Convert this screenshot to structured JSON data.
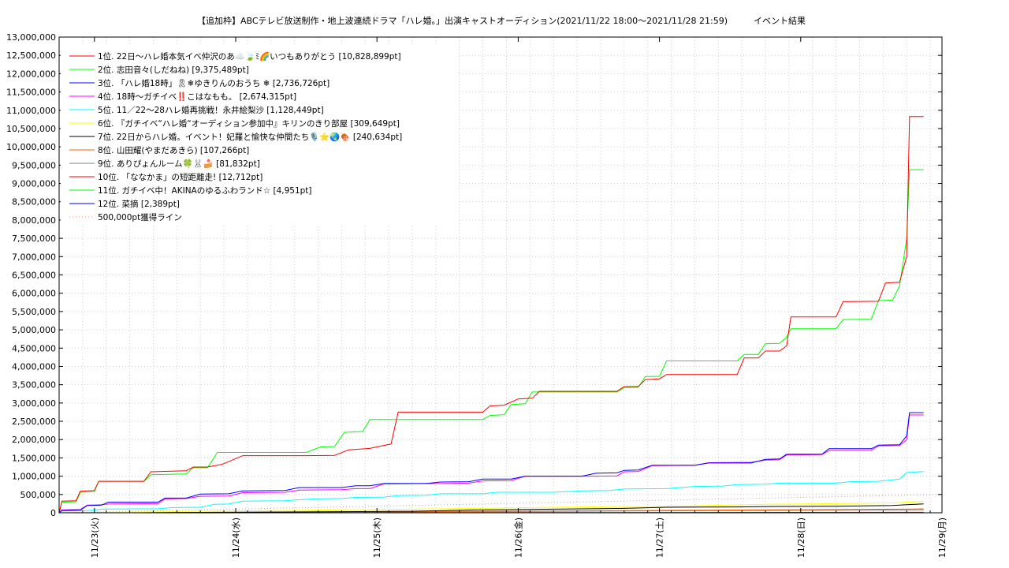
{
  "chart_data": {
    "type": "line",
    "title": "【追加枠】ABCテレビ放送制作・地上波連続ドラマ「ハレ婚。」出演キャストオーディション(2021/11/22 18:00〜2021/11/28 21:59)　　　イベント結果",
    "xlabel": "",
    "ylabel": "",
    "ylim": [
      0,
      13000000
    ],
    "xlim": [
      0,
      6.25
    ],
    "grid": true,
    "legend_position": "top-left",
    "x_tick_labels": [
      "11/23(火)",
      "11/24(水)",
      "11/25(木)",
      "11/26(金)",
      "11/27(土)",
      "11/28(日)",
      "11/29(月)"
    ],
    "x_tick_values": [
      0.25,
      1.25,
      2.25,
      3.25,
      4.25,
      5.25,
      6.25
    ],
    "y_tick_labels": [
      "0",
      "500,000",
      "1,000,000",
      "1,500,000",
      "2,000,000",
      "2,500,000",
      "3,000,000",
      "3,500,000",
      "4,000,000",
      "4,500,000",
      "5,000,000",
      "5,500,000",
      "6,000,000",
      "6,500,000",
      "7,000,000",
      "7,500,000",
      "8,000,000",
      "8,500,000",
      "9,000,000",
      "9,500,000",
      "10,000,000",
      "10,500,000",
      "11,000,000",
      "11,500,000",
      "12,000,000",
      "12,500,000",
      "13,000,000"
    ],
    "y_tick_values": [
      0,
      500000,
      1000000,
      1500000,
      2000000,
      2500000,
      3000000,
      3500000,
      4000000,
      4500000,
      5000000,
      5500000,
      6000000,
      6500000,
      7000000,
      7500000,
      8000000,
      8500000,
      9000000,
      9500000,
      10000000,
      10500000,
      11000000,
      11500000,
      12000000,
      12500000,
      13000000
    ],
    "series": [
      {
        "name": "1位. 22日〜ハレ婚本気イベ仲沢のあ☁️🍃ﾐ🌈いつもありがとう [10,828,899pt]",
        "color": "#ff0000",
        "points": [
          [
            0,
            0
          ],
          [
            0.02,
            320000
          ],
          [
            0.12,
            330000
          ],
          [
            0.15,
            590000
          ],
          [
            0.25,
            610000
          ],
          [
            0.28,
            860000
          ],
          [
            0.6,
            860000
          ],
          [
            0.65,
            1120000
          ],
          [
            0.9,
            1150000
          ],
          [
            0.95,
            1250000
          ],
          [
            1.05,
            1250000
          ],
          [
            1.15,
            1320000
          ],
          [
            1.3,
            1560000
          ],
          [
            1.75,
            1560000
          ],
          [
            1.95,
            1570000
          ],
          [
            2.05,
            1720000
          ],
          [
            2.2,
            1760000
          ],
          [
            2.35,
            1880000
          ],
          [
            2.4,
            2750000
          ],
          [
            3.0,
            2750000
          ],
          [
            3.05,
            2920000
          ],
          [
            3.15,
            2940000
          ],
          [
            3.25,
            3110000
          ],
          [
            3.35,
            3130000
          ],
          [
            3.4,
            3320000
          ],
          [
            3.95,
            3320000
          ],
          [
            4.0,
            3450000
          ],
          [
            4.1,
            3450000
          ],
          [
            4.15,
            3640000
          ],
          [
            4.25,
            3660000
          ],
          [
            4.3,
            3780000
          ],
          [
            4.8,
            3780000
          ],
          [
            4.85,
            4230000
          ],
          [
            4.95,
            4230000
          ],
          [
            5.0,
            4420000
          ],
          [
            5.1,
            4420000
          ],
          [
            5.15,
            4560000
          ],
          [
            5.18,
            5350000
          ],
          [
            5.5,
            5350000
          ],
          [
            5.55,
            5770000
          ],
          [
            5.8,
            5780000
          ],
          [
            5.85,
            6280000
          ],
          [
            5.95,
            6300000
          ],
          [
            6.0,
            7000000
          ],
          [
            6.02,
            10828899
          ],
          [
            6.12,
            10828899
          ]
        ]
      },
      {
        "name": "2位. 志田音々(しだねね) [9,375,489pt]",
        "color": "#00ff00",
        "points": [
          [
            0,
            0
          ],
          [
            0.02,
            290000
          ],
          [
            0.12,
            300000
          ],
          [
            0.15,
            560000
          ],
          [
            0.25,
            580000
          ],
          [
            0.28,
            860000
          ],
          [
            0.6,
            860000
          ],
          [
            0.65,
            1040000
          ],
          [
            0.9,
            1060000
          ],
          [
            0.95,
            1230000
          ],
          [
            1.05,
            1230000
          ],
          [
            1.12,
            1650000
          ],
          [
            1.75,
            1650000
          ],
          [
            1.85,
            1800000
          ],
          [
            1.95,
            1810000
          ],
          [
            2.02,
            2200000
          ],
          [
            2.15,
            2220000
          ],
          [
            2.2,
            2550000
          ],
          [
            3.0,
            2550000
          ],
          [
            3.05,
            2660000
          ],
          [
            3.15,
            2680000
          ],
          [
            3.2,
            2960000
          ],
          [
            3.3,
            2980000
          ],
          [
            3.35,
            3300000
          ],
          [
            3.95,
            3300000
          ],
          [
            4.0,
            3420000
          ],
          [
            4.1,
            3430000
          ],
          [
            4.15,
            3720000
          ],
          [
            4.25,
            3730000
          ],
          [
            4.3,
            4150000
          ],
          [
            4.8,
            4150000
          ],
          [
            4.85,
            4330000
          ],
          [
            4.95,
            4330000
          ],
          [
            5.0,
            4620000
          ],
          [
            5.1,
            4630000
          ],
          [
            5.15,
            4800000
          ],
          [
            5.18,
            5030000
          ],
          [
            5.5,
            5030000
          ],
          [
            5.55,
            5280000
          ],
          [
            5.75,
            5290000
          ],
          [
            5.8,
            5800000
          ],
          [
            5.9,
            5810000
          ],
          [
            5.95,
            6200000
          ],
          [
            6.0,
            7500000
          ],
          [
            6.02,
            9375489
          ],
          [
            6.12,
            9375489
          ]
        ]
      },
      {
        "name": "3位. 「ハレ婚18時」🎗❄ゆきりんのおうち ❄ [2,736,726pt]",
        "color": "#0000ff",
        "points": [
          [
            0,
            0
          ],
          [
            0.02,
            60000
          ],
          [
            0.15,
            70000
          ],
          [
            0.2,
            200000
          ],
          [
            0.3,
            210000
          ],
          [
            0.35,
            290000
          ],
          [
            0.7,
            290000
          ],
          [
            0.75,
            400000
          ],
          [
            0.9,
            400000
          ],
          [
            1.0,
            510000
          ],
          [
            1.2,
            520000
          ],
          [
            1.3,
            600000
          ],
          [
            1.6,
            610000
          ],
          [
            1.7,
            690000
          ],
          [
            2.0,
            690000
          ],
          [
            2.1,
            740000
          ],
          [
            2.2,
            740000
          ],
          [
            2.3,
            800000
          ],
          [
            2.6,
            800000
          ],
          [
            2.7,
            840000
          ],
          [
            2.9,
            850000
          ],
          [
            3.0,
            920000
          ],
          [
            3.2,
            920000
          ],
          [
            3.3,
            1000000
          ],
          [
            3.7,
            1000000
          ],
          [
            3.8,
            1080000
          ],
          [
            3.95,
            1090000
          ],
          [
            4.0,
            1160000
          ],
          [
            4.1,
            1170000
          ],
          [
            4.2,
            1300000
          ],
          [
            4.5,
            1300000
          ],
          [
            4.6,
            1360000
          ],
          [
            4.9,
            1360000
          ],
          [
            5.0,
            1460000
          ],
          [
            5.1,
            1470000
          ],
          [
            5.15,
            1600000
          ],
          [
            5.4,
            1600000
          ],
          [
            5.45,
            1750000
          ],
          [
            5.75,
            1750000
          ],
          [
            5.8,
            1850000
          ],
          [
            5.95,
            1860000
          ],
          [
            6.0,
            2100000
          ],
          [
            6.02,
            2736726
          ],
          [
            6.12,
            2736726
          ]
        ]
      },
      {
        "name": "4位. 18時〜ガチイベ‼️こはなもも。 [2,674,315pt]",
        "color": "#ff00ff",
        "points": [
          [
            0,
            0
          ],
          [
            0.02,
            80000
          ],
          [
            0.15,
            90000
          ],
          [
            0.2,
            210000
          ],
          [
            0.3,
            220000
          ],
          [
            0.35,
            240000
          ],
          [
            0.7,
            250000
          ],
          [
            0.75,
            380000
          ],
          [
            0.9,
            390000
          ],
          [
            1.0,
            450000
          ],
          [
            1.2,
            460000
          ],
          [
            1.3,
            550000
          ],
          [
            1.6,
            560000
          ],
          [
            1.7,
            620000
          ],
          [
            2.0,
            630000
          ],
          [
            2.1,
            660000
          ],
          [
            2.2,
            660000
          ],
          [
            2.3,
            790000
          ],
          [
            2.6,
            800000
          ],
          [
            2.7,
            800000
          ],
          [
            2.9,
            810000
          ],
          [
            3.0,
            870000
          ],
          [
            3.2,
            880000
          ],
          [
            3.3,
            1000000
          ],
          [
            3.7,
            1000000
          ],
          [
            3.8,
            1000000
          ],
          [
            3.95,
            1010000
          ],
          [
            4.0,
            1120000
          ],
          [
            4.1,
            1130000
          ],
          [
            4.2,
            1290000
          ],
          [
            4.5,
            1300000
          ],
          [
            4.6,
            1370000
          ],
          [
            4.9,
            1380000
          ],
          [
            5.0,
            1440000
          ],
          [
            5.1,
            1450000
          ],
          [
            5.15,
            1580000
          ],
          [
            5.4,
            1590000
          ],
          [
            5.45,
            1700000
          ],
          [
            5.75,
            1710000
          ],
          [
            5.8,
            1830000
          ],
          [
            5.95,
            1840000
          ],
          [
            6.0,
            2000000
          ],
          [
            6.02,
            2674315
          ],
          [
            6.12,
            2674315
          ]
        ]
      },
      {
        "name": "5位. 11／22〜28ハレ婚再挑戦！永井絵梨沙 [1,128,449pt]",
        "color": "#00ffff",
        "points": [
          [
            0,
            0
          ],
          [
            0.02,
            50000
          ],
          [
            0.2,
            60000
          ],
          [
            0.3,
            100000
          ],
          [
            0.7,
            110000
          ],
          [
            0.8,
            140000
          ],
          [
            1.0,
            150000
          ],
          [
            1.1,
            230000
          ],
          [
            1.2,
            240000
          ],
          [
            1.3,
            320000
          ],
          [
            1.6,
            330000
          ],
          [
            1.8,
            380000
          ],
          [
            2.0,
            390000
          ],
          [
            2.1,
            420000
          ],
          [
            2.3,
            430000
          ],
          [
            2.4,
            470000
          ],
          [
            2.6,
            480000
          ],
          [
            2.7,
            520000
          ],
          [
            3.0,
            520000
          ],
          [
            3.1,
            560000
          ],
          [
            3.5,
            560000
          ],
          [
            3.7,
            600000
          ],
          [
            3.9,
            610000
          ],
          [
            4.0,
            650000
          ],
          [
            4.3,
            660000
          ],
          [
            4.5,
            720000
          ],
          [
            4.7,
            730000
          ],
          [
            4.8,
            770000
          ],
          [
            5.0,
            780000
          ],
          [
            5.1,
            810000
          ],
          [
            5.5,
            810000
          ],
          [
            5.6,
            850000
          ],
          [
            5.8,
            860000
          ],
          [
            5.9,
            900000
          ],
          [
            5.95,
            920000
          ],
          [
            6.0,
            1100000
          ],
          [
            6.12,
            1128449
          ]
        ]
      },
      {
        "name": "6位. 『ガチイベ“ハレ婚“オーディション参加中』キリンのきり部屋 [309,649pt]",
        "color": "#ffff00",
        "points": [
          [
            0,
            0
          ],
          [
            0.5,
            20000
          ],
          [
            1.0,
            40000
          ],
          [
            1.5,
            60000
          ],
          [
            2.0,
            80000
          ],
          [
            2.5,
            100000
          ],
          [
            3.0,
            120000
          ],
          [
            3.5,
            150000
          ],
          [
            4.0,
            170000
          ],
          [
            4.5,
            190000
          ],
          [
            5.0,
            230000
          ],
          [
            5.5,
            250000
          ],
          [
            5.9,
            270000
          ],
          [
            6.12,
            309649
          ]
        ]
      },
      {
        "name": "7位. 22日からハレ婚。イベント！妃羅と愉快な仲間たち🎙️⭐🌏🍖 [240,634pt]",
        "color": "#000000",
        "points": [
          [
            0,
            0
          ],
          [
            1.0,
            10000
          ],
          [
            2.0,
            30000
          ],
          [
            2.5,
            40000
          ],
          [
            3.0,
            80000
          ],
          [
            3.5,
            100000
          ],
          [
            4.0,
            120000
          ],
          [
            4.3,
            150000
          ],
          [
            4.8,
            160000
          ],
          [
            5.0,
            170000
          ],
          [
            5.5,
            180000
          ],
          [
            5.9,
            200000
          ],
          [
            6.12,
            240634
          ]
        ]
      },
      {
        "name": "8位. 山田耀(やまだあきら) [107,266pt]",
        "color": "#ff6600",
        "points": [
          [
            0,
            0
          ],
          [
            1.0,
            5000
          ],
          [
            2.0,
            20000
          ],
          [
            3.0,
            40000
          ],
          [
            4.0,
            60000
          ],
          [
            5.0,
            80000
          ],
          [
            6.0,
            100000
          ],
          [
            6.12,
            107266
          ]
        ]
      },
      {
        "name": "9位. ありぴょんルーム🍀🐰🍰 [81,832pt]",
        "color": "#808080",
        "points": [
          [
            0,
            0
          ],
          [
            1.0,
            5000
          ],
          [
            2.0,
            15000
          ],
          [
            3.0,
            30000
          ],
          [
            4.0,
            50000
          ],
          [
            5.0,
            65000
          ],
          [
            6.0,
            78000
          ],
          [
            6.12,
            81832
          ]
        ]
      },
      {
        "name": "10位. 「ななかま」の短距離走! [12,712pt]",
        "color": "#ff0000",
        "points": [
          [
            0,
            0
          ],
          [
            3.0,
            5000
          ],
          [
            6.12,
            12712
          ]
        ]
      },
      {
        "name": "11位. ガチイベ中！AKINAのゆるふわランド☆ [4,951pt]",
        "color": "#00ff00",
        "points": [
          [
            0,
            0
          ],
          [
            3.0,
            2000
          ],
          [
            6.12,
            4951
          ]
        ]
      },
      {
        "name": "12位. 菜摘 [2,389pt]",
        "color": "#0000ff",
        "points": [
          [
            0,
            0
          ],
          [
            3.0,
            1000
          ],
          [
            6.12,
            2389
          ]
        ]
      },
      {
        "name": "500,000pt獲得ライン",
        "color": "#ff8080",
        "dashed": true,
        "points": [
          [
            0,
            0
          ],
          [
            6.25,
            500000
          ]
        ]
      }
    ]
  }
}
